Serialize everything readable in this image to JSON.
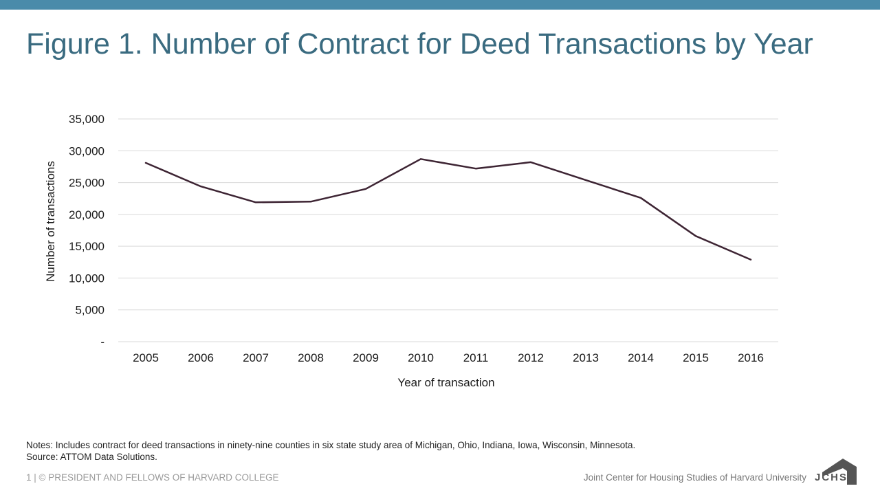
{
  "title": "Figure 1. Number of Contract for Deed Transactions by Year",
  "notes": {
    "line1": "Notes: Includes contract for deed transactions in ninety-nine counties in six state study area of Michigan, Ohio, Indiana, Iowa, Wisconsin, Minnesota.",
    "line2": "Source: ATTOM Data Solutions."
  },
  "footer": {
    "left": "1 | © PRESIDENT AND FELLOWS OF HARVARD COLLEGE",
    "right": "Joint Center for Housing Studies of Harvard University",
    "logo_text": "JCHS"
  },
  "colors": {
    "line": "#3d2433",
    "title": "#3a6b80",
    "top_bar": "#4a8baa",
    "grid": "#d9d9d9"
  },
  "chart_data": {
    "type": "line",
    "x": [
      "2005",
      "2006",
      "2007",
      "2008",
      "2009",
      "2010",
      "2011",
      "2012",
      "2013",
      "2014",
      "2015",
      "2016"
    ],
    "series": [
      {
        "values": [
          28100,
          24400,
          21900,
          22000,
          24000,
          28700,
          27200,
          28200,
          25400,
          22600,
          16600,
          12900
        ]
      }
    ],
    "xlabel": "Year of transaction",
    "ylabel": "Number of transactions",
    "ylim": [
      0,
      35000
    ],
    "yticks": [
      0,
      5000,
      10000,
      15000,
      20000,
      25000,
      30000,
      35000
    ],
    "ytick_labels": [
      "-",
      "5,000",
      "10,000",
      "15,000",
      "20,000",
      "25,000",
      "30,000",
      "35,000"
    ],
    "grid": true,
    "legend": "none"
  }
}
